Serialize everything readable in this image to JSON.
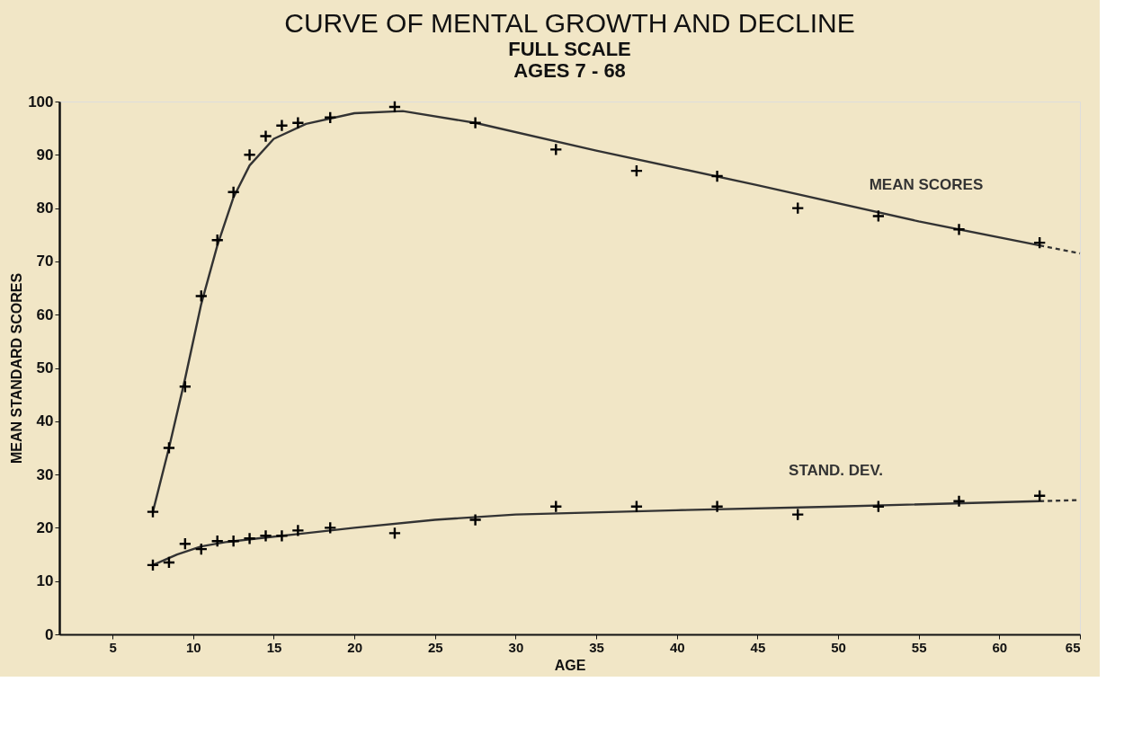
{
  "chart_data": {
    "type": "scatter",
    "title": "CURVE OF MENTAL GROWTH AND DECLINE",
    "subtitle": [
      "FULL SCALE",
      "AGES 7 - 68"
    ],
    "xlabel": "AGE",
    "ylabel": "MEAN STANDARD SCORES",
    "xlim": [
      1.7,
      65
    ],
    "xticks": [
      5,
      10,
      15,
      20,
      25,
      30,
      35,
      40,
      45,
      50,
      55,
      60,
      65
    ],
    "ylim": [
      0,
      100
    ],
    "yticks": [
      0,
      10,
      20,
      30,
      40,
      50,
      60,
      70,
      80,
      90,
      100
    ],
    "grid": false,
    "series": [
      {
        "marker": "cross",
        "color": "#000000",
        "x": [
          7.5,
          8.5,
          9.5,
          10.5,
          11.5,
          12.5,
          13.5,
          14.5,
          15.5,
          16.5,
          18.5,
          22.5,
          27.5,
          32.5,
          37.5,
          42.5,
          47.5,
          52.5,
          57.5,
          62.5
        ],
        "values": [
          23,
          35,
          46.5,
          63.5,
          74,
          83,
          90,
          93.5,
          95.5,
          96,
          97,
          99,
          96,
          91,
          87,
          86,
          80,
          78.5,
          76,
          73.5
        ]
      },
      {
        "type": "line",
        "name": "MEAN SCORES",
        "marker": "none",
        "color": "#333333",
        "line_style": "solid",
        "x": [
          7.5,
          8.5,
          9.5,
          10.5,
          11.5,
          12.5,
          13.5,
          15,
          17,
          20,
          23,
          27.5,
          35,
          45,
          55,
          62.5
        ],
        "values": [
          23,
          35,
          48,
          62,
          73,
          82,
          88,
          93,
          95.8,
          97.8,
          98.2,
          96,
          90.8,
          84.3,
          77.5,
          73
        ]
      },
      {
        "type": "line",
        "marker": "none",
        "color": "#333333",
        "line_style": "dashed",
        "x": [
          62.5,
          65
        ],
        "values": [
          73,
          71.5
        ]
      },
      {
        "marker": "cross",
        "color": "#000000",
        "x": [
          7.5,
          8.5,
          9.5,
          10.5,
          11.5,
          12.5,
          13.5,
          14.5,
          15.5,
          16.5,
          18.5,
          22.5,
          27.5,
          32.5,
          37.5,
          42.5,
          47.5,
          52.5,
          57.5,
          62.5
        ],
        "values": [
          13,
          13.5,
          17,
          16,
          17.5,
          17.5,
          18,
          18.5,
          18.5,
          19.5,
          20,
          19,
          21.5,
          24,
          24,
          24,
          22.5,
          24,
          25,
          26
        ]
      },
      {
        "type": "line",
        "name": "STAND. DEV.",
        "marker": "none",
        "color": "#333333",
        "line_style": "solid",
        "x": [
          7.5,
          9,
          10.5,
          12,
          14,
          17,
          20,
          25,
          30,
          40,
          50,
          62.5
        ],
        "values": [
          13,
          15,
          16.5,
          17.3,
          18,
          19,
          20,
          21.5,
          22.5,
          23.3,
          24,
          25
        ]
      },
      {
        "type": "line",
        "marker": "none",
        "color": "#333333",
        "line_style": "dashed",
        "x": [
          62.5,
          65
        ],
        "values": [
          25,
          25.2
        ]
      }
    ]
  }
}
